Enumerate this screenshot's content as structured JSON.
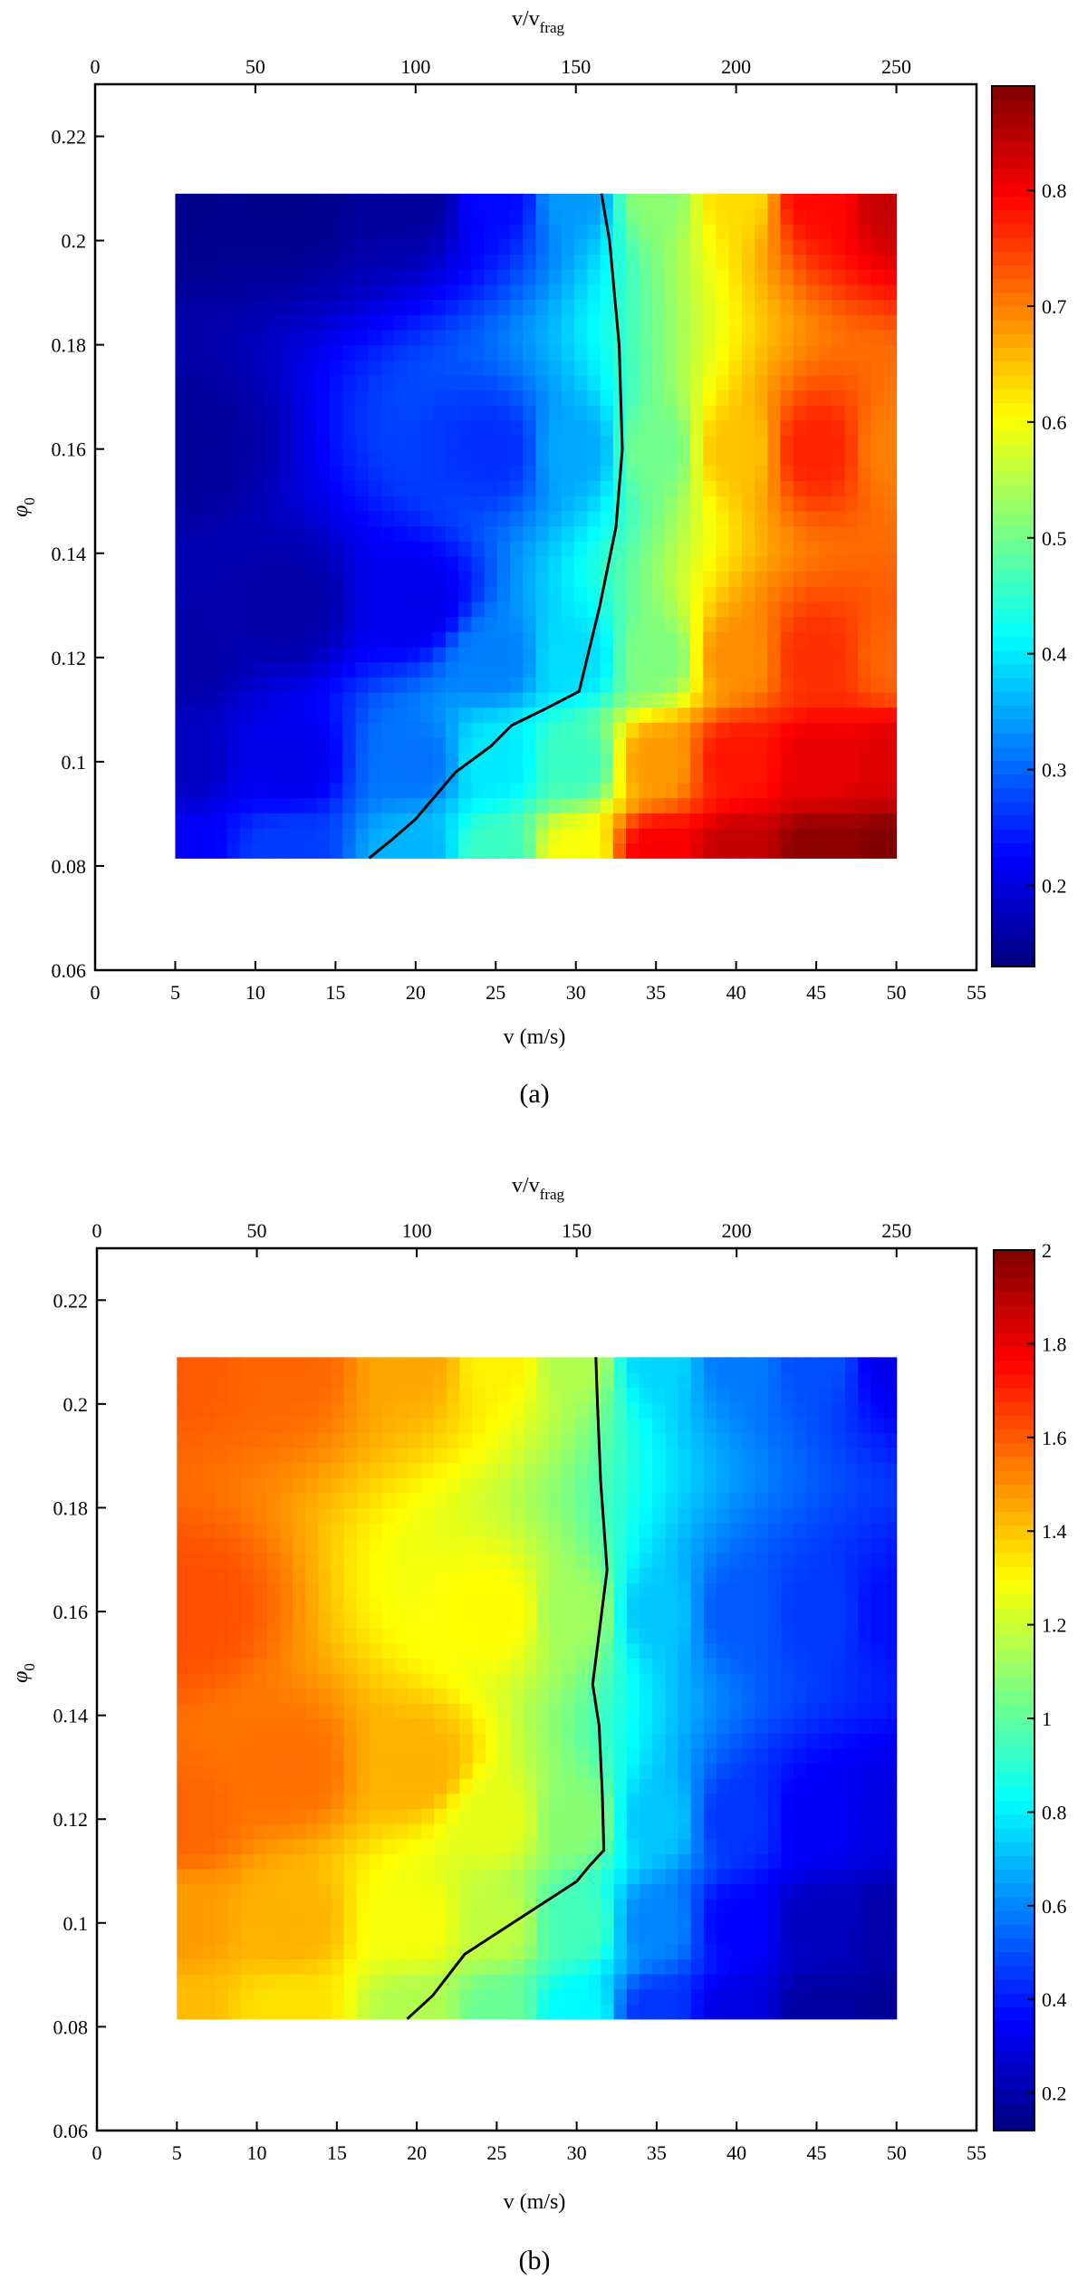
{
  "figure": {
    "captions": [
      "(a)",
      "(b)"
    ]
  },
  "chart_data": [
    {
      "type": "heatmap",
      "caption": "(a)",
      "title": "",
      "xlabel": "v (m/s)",
      "xlabel_top": "v/v",
      "xlabel_top_sub": "frag",
      "ylabel": "φ",
      "ylabel_sub": "0",
      "xlim": [
        0,
        55
      ],
      "ylim": [
        0.06,
        0.23
      ],
      "xlim_top": [
        0,
        275
      ],
      "x_ticks": [
        "0",
        "5",
        "10",
        "15",
        "20",
        "25",
        "30",
        "35",
        "40",
        "45",
        "50",
        "55"
      ],
      "y_ticks": [
        "0.06",
        "0.08",
        "0.1",
        "0.12",
        "0.14",
        "0.16",
        "0.18",
        "0.2",
        "0.22"
      ],
      "top_ticks": [
        "0",
        "50",
        "100",
        "150",
        "200",
        "250"
      ],
      "colorbar": {
        "range": [
          0.13,
          0.89
        ],
        "ticks": [
          "0.2",
          "0.3",
          "0.4",
          "0.5",
          "0.6",
          "0.7",
          "0.8"
        ],
        "colormap": "jet"
      },
      "data_extent": {
        "x": [
          5,
          50
        ],
        "y": [
          0.0815,
          0.209
        ]
      },
      "field_points": [
        {
          "x": 5,
          "y": 0.082,
          "v": 0.22
        },
        {
          "x": 5,
          "y": 0.1,
          "v": 0.18
        },
        {
          "x": 5,
          "y": 0.12,
          "v": 0.16
        },
        {
          "x": 5,
          "y": 0.16,
          "v": 0.15
        },
        {
          "x": 5,
          "y": 0.209,
          "v": 0.14
        },
        {
          "x": 12,
          "y": 0.082,
          "v": 0.27
        },
        {
          "x": 12,
          "y": 0.1,
          "v": 0.21
        },
        {
          "x": 12,
          "y": 0.13,
          "v": 0.16
        },
        {
          "x": 12,
          "y": 0.209,
          "v": 0.14
        },
        {
          "x": 20,
          "y": 0.082,
          "v": 0.36
        },
        {
          "x": 20,
          "y": 0.1,
          "v": 0.31
        },
        {
          "x": 20,
          "y": 0.13,
          "v": 0.21
        },
        {
          "x": 20,
          "y": 0.209,
          "v": 0.15
        },
        {
          "x": 25,
          "y": 0.082,
          "v": 0.46
        },
        {
          "x": 25,
          "y": 0.1,
          "v": 0.4
        },
        {
          "x": 25,
          "y": 0.12,
          "v": 0.32
        },
        {
          "x": 25,
          "y": 0.16,
          "v": 0.26
        },
        {
          "x": 25,
          "y": 0.209,
          "v": 0.23
        },
        {
          "x": 30,
          "y": 0.082,
          "v": 0.6
        },
        {
          "x": 30,
          "y": 0.1,
          "v": 0.46
        },
        {
          "x": 30,
          "y": 0.12,
          "v": 0.39
        },
        {
          "x": 30,
          "y": 0.16,
          "v": 0.35
        },
        {
          "x": 30,
          "y": 0.209,
          "v": 0.34
        },
        {
          "x": 35,
          "y": 0.082,
          "v": 0.8
        },
        {
          "x": 35,
          "y": 0.1,
          "v": 0.68
        },
        {
          "x": 35,
          "y": 0.12,
          "v": 0.51
        },
        {
          "x": 35,
          "y": 0.16,
          "v": 0.5
        },
        {
          "x": 35,
          "y": 0.209,
          "v": 0.52
        },
        {
          "x": 40,
          "y": 0.082,
          "v": 0.84
        },
        {
          "x": 40,
          "y": 0.1,
          "v": 0.78
        },
        {
          "x": 40,
          "y": 0.12,
          "v": 0.69
        },
        {
          "x": 40,
          "y": 0.16,
          "v": 0.65
        },
        {
          "x": 40,
          "y": 0.209,
          "v": 0.63
        },
        {
          "x": 45,
          "y": 0.082,
          "v": 0.88
        },
        {
          "x": 45,
          "y": 0.1,
          "v": 0.81
        },
        {
          "x": 45,
          "y": 0.12,
          "v": 0.76
        },
        {
          "x": 45,
          "y": 0.16,
          "v": 0.77
        },
        {
          "x": 45,
          "y": 0.209,
          "v": 0.79
        },
        {
          "x": 50,
          "y": 0.082,
          "v": 0.89
        },
        {
          "x": 50,
          "y": 0.1,
          "v": 0.82
        },
        {
          "x": 50,
          "y": 0.12,
          "v": 0.72
        },
        {
          "x": 50,
          "y": 0.16,
          "v": 0.7
        },
        {
          "x": 50,
          "y": 0.209,
          "v": 0.84
        }
      ],
      "contour": [
        [
          17.1,
          0.0815
        ],
        [
          18.5,
          0.085
        ],
        [
          20,
          0.089
        ],
        [
          22.5,
          0.098
        ],
        [
          24.7,
          0.103
        ],
        [
          26,
          0.107
        ],
        [
          28,
          0.11
        ],
        [
          30.2,
          0.1135
        ],
        [
          31.5,
          0.13
        ],
        [
          32.5,
          0.145
        ],
        [
          32.9,
          0.16
        ],
        [
          32.7,
          0.18
        ],
        [
          32.1,
          0.2
        ],
        [
          31.6,
          0.209
        ]
      ]
    },
    {
      "type": "heatmap",
      "caption": "(b)",
      "title": "",
      "xlabel": "v (m/s)",
      "xlabel_top": "v/v",
      "xlabel_top_sub": "frag",
      "ylabel": "φ",
      "ylabel_sub": "0",
      "xlim": [
        0,
        55
      ],
      "ylim": [
        0.06,
        0.23
      ],
      "xlim_top": [
        0,
        275
      ],
      "x_ticks": [
        "0",
        "5",
        "10",
        "15",
        "20",
        "25",
        "30",
        "35",
        "40",
        "45",
        "50",
        "55"
      ],
      "y_ticks": [
        "0.06",
        "0.08",
        "0.1",
        "0.12",
        "0.14",
        "0.16",
        "0.18",
        "0.2",
        "0.22"
      ],
      "top_ticks": [
        "0",
        "50",
        "100",
        "150",
        "200",
        "250"
      ],
      "colorbar": {
        "range": [
          0.12,
          2.0
        ],
        "ticks": [
          "0.2",
          "0.4",
          "0.6",
          "0.8",
          "1",
          "1.2",
          "1.4",
          "1.6",
          "1.8",
          "2"
        ],
        "colormap": "jet"
      },
      "data_extent": {
        "x": [
          5,
          50
        ],
        "y": [
          0.0815,
          0.209
        ]
      },
      "field_points": [
        {
          "x": 5,
          "y": 0.082,
          "v": 1.42
        },
        {
          "x": 5,
          "y": 0.1,
          "v": 1.48
        },
        {
          "x": 5,
          "y": 0.12,
          "v": 1.58
        },
        {
          "x": 5,
          "y": 0.16,
          "v": 1.62
        },
        {
          "x": 5,
          "y": 0.209,
          "v": 1.6
        },
        {
          "x": 12,
          "y": 0.082,
          "v": 1.35
        },
        {
          "x": 12,
          "y": 0.1,
          "v": 1.44
        },
        {
          "x": 12,
          "y": 0.13,
          "v": 1.56
        },
        {
          "x": 12,
          "y": 0.209,
          "v": 1.58
        },
        {
          "x": 20,
          "y": 0.082,
          "v": 1.15
        },
        {
          "x": 20,
          "y": 0.1,
          "v": 1.28
        },
        {
          "x": 20,
          "y": 0.13,
          "v": 1.44
        },
        {
          "x": 20,
          "y": 0.209,
          "v": 1.46
        },
        {
          "x": 25,
          "y": 0.082,
          "v": 1.02
        },
        {
          "x": 25,
          "y": 0.1,
          "v": 1.18
        },
        {
          "x": 25,
          "y": 0.12,
          "v": 1.25
        },
        {
          "x": 25,
          "y": 0.16,
          "v": 1.3
        },
        {
          "x": 25,
          "y": 0.209,
          "v": 1.32
        },
        {
          "x": 30,
          "y": 0.082,
          "v": 0.82
        },
        {
          "x": 30,
          "y": 0.1,
          "v": 0.95
        },
        {
          "x": 30,
          "y": 0.12,
          "v": 1.08
        },
        {
          "x": 30,
          "y": 0.16,
          "v": 1.12
        },
        {
          "x": 30,
          "y": 0.209,
          "v": 1.15
        },
        {
          "x": 35,
          "y": 0.082,
          "v": 0.45
        },
        {
          "x": 35,
          "y": 0.1,
          "v": 0.6
        },
        {
          "x": 35,
          "y": 0.12,
          "v": 0.72
        },
        {
          "x": 35,
          "y": 0.16,
          "v": 0.72
        },
        {
          "x": 35,
          "y": 0.209,
          "v": 0.75
        },
        {
          "x": 40,
          "y": 0.082,
          "v": 0.3
        },
        {
          "x": 40,
          "y": 0.1,
          "v": 0.36
        },
        {
          "x": 40,
          "y": 0.12,
          "v": 0.45
        },
        {
          "x": 40,
          "y": 0.16,
          "v": 0.52
        },
        {
          "x": 40,
          "y": 0.209,
          "v": 0.58
        },
        {
          "x": 45,
          "y": 0.082,
          "v": 0.18
        },
        {
          "x": 45,
          "y": 0.1,
          "v": 0.24
        },
        {
          "x": 45,
          "y": 0.12,
          "v": 0.34
        },
        {
          "x": 45,
          "y": 0.16,
          "v": 0.46
        },
        {
          "x": 45,
          "y": 0.209,
          "v": 0.5
        },
        {
          "x": 50,
          "y": 0.082,
          "v": 0.16
        },
        {
          "x": 50,
          "y": 0.1,
          "v": 0.2
        },
        {
          "x": 50,
          "y": 0.12,
          "v": 0.3
        },
        {
          "x": 50,
          "y": 0.16,
          "v": 0.38
        },
        {
          "x": 50,
          "y": 0.209,
          "v": 0.32
        }
      ],
      "contour": [
        [
          19.4,
          0.0815
        ],
        [
          21,
          0.086
        ],
        [
          23,
          0.094
        ],
        [
          25,
          0.098
        ],
        [
          27.5,
          0.103
        ],
        [
          30,
          0.108
        ],
        [
          30.8,
          0.111
        ],
        [
          31.7,
          0.114
        ],
        [
          31.6,
          0.125
        ],
        [
          31.4,
          0.138
        ],
        [
          31,
          0.146
        ],
        [
          31.9,
          0.168
        ],
        [
          31.5,
          0.185
        ],
        [
          31.3,
          0.2
        ],
        [
          31.2,
          0.209
        ]
      ]
    }
  ]
}
